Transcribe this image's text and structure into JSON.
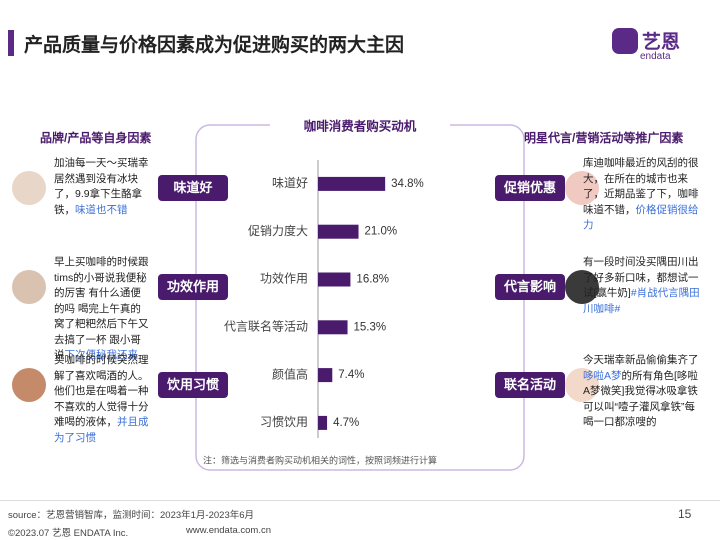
{
  "header": {
    "title": "产品质量与价格因素成为促进购买的两大主因",
    "logo_cn": "艺恩",
    "logo_en": "endata"
  },
  "left": {
    "heading": "品牌/产品等自身因素",
    "items": [
      {
        "tag": "味道好",
        "text": "加油每一天～买瑞幸居然遇到没有冰块了，9.9拿下生酪拿铁，",
        "highlight": "味道也不错"
      },
      {
        "tag": "功效作用",
        "text": "早上买咖啡的时候跟tims的小哥说我便秘的厉害 有什么通便的吗 喝完上午真的窝了粑粑然后下午又去搞了一杯 跟小哥说",
        "highlight": "下次便秘我还来"
      },
      {
        "tag": "饮用习惯",
        "text": "买咖啡的时候突然理解了喜欢喝酒的人。他们也是在喝着一种不喜欢的人觉得十分难喝的液体，",
        "highlight": "并且成为了习惯"
      }
    ]
  },
  "right": {
    "heading": "明星代言/营销活动等推广因素",
    "items": [
      {
        "tag": "促销优惠",
        "text": "库迪咖啡最近的风刮的很大，在所在的城市也来了，近期品鉴了下，咖啡味道不错，",
        "highlight": "价格促销很给力"
      },
      {
        "tag": "代言影响",
        "text": "有一段时间没买隅田川出了好多新口味，都想试一试[赢牛奶]",
        "highlight": "#肖战代言隅田川咖啡#"
      },
      {
        "tag": "联名活动",
        "text": "今天瑞幸新品偷偷集齐了",
        "highlight": "哆啦A梦",
        "text_after": "的所有角色[哆啦A梦微笑]我觉得冰吸拿铁可以叫“噎子灌风拿铁”每喝一口都凉嗖的"
      }
    ]
  },
  "chart_data": {
    "type": "bar",
    "orientation": "horizontal",
    "title": "咖啡消费者购买动机",
    "categories": [
      "味道好",
      "促销力度大",
      "功效作用",
      "代言联名等活动",
      "颜值高",
      "习惯饮用"
    ],
    "values": [
      34.8,
      21.0,
      16.8,
      15.3,
      7.4,
      4.7
    ],
    "value_labels": [
      "34.8%",
      "21.0%",
      "16.8%",
      "15.3%",
      "7.4%",
      "4.7%"
    ],
    "color": "#4a1b6d",
    "xlim": [
      0,
      100
    ],
    "note": "注：筛选与消费者购买动机相关的词性，按照词频进行计算"
  },
  "footer": {
    "source": "source：艺恩营销智库，监测时间：2023年1月-2023年6月",
    "copyright": "©2023.07 艺恩 ENDATA Inc.",
    "website": "www.endata.com.cn",
    "page": "15"
  }
}
